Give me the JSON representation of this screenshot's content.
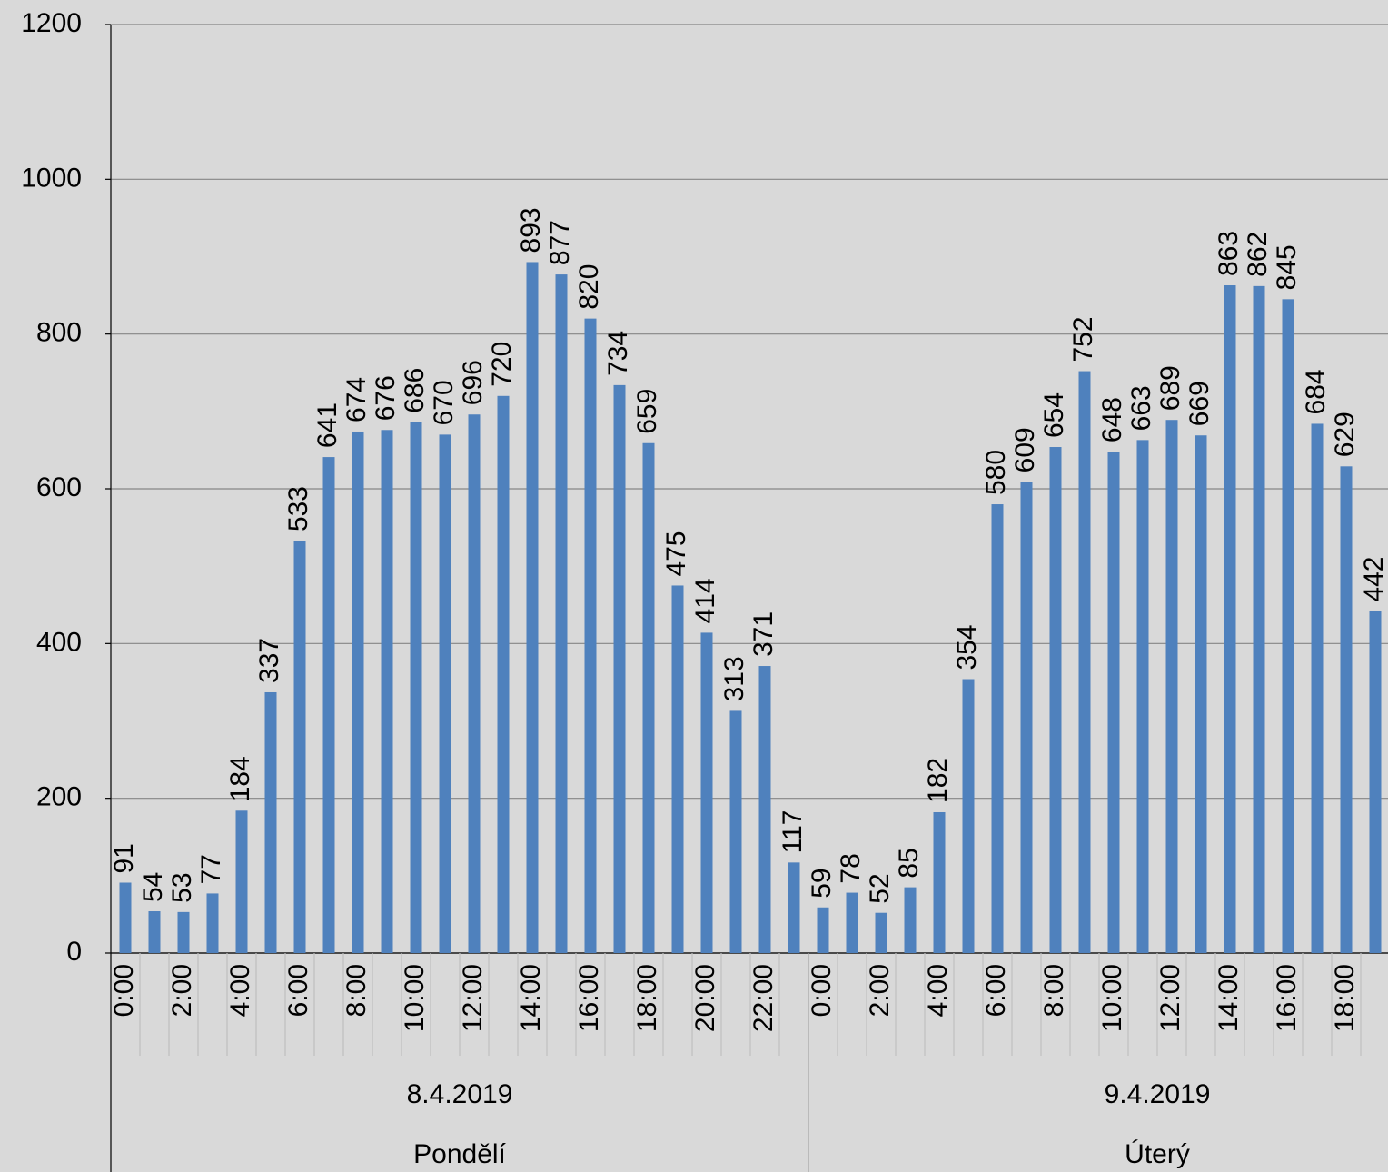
{
  "chart_data": {
    "type": "bar",
    "categories": [
      "0:00",
      null,
      "2:00",
      null,
      "4:00",
      null,
      "6:00",
      null,
      "8:00",
      null,
      "10:00",
      null,
      "12:00",
      null,
      "14:00",
      null,
      "16:00",
      null,
      "18:00",
      null,
      "20:00",
      null,
      "22:00",
      null,
      "0:00",
      null,
      "2:00",
      null,
      "4:00",
      null,
      "6:00",
      null,
      "8:00",
      null,
      "10:00",
      null,
      "12:00",
      null,
      "14:00",
      null,
      "16:00",
      null,
      "18:00",
      null
    ],
    "groups": [
      {
        "date": "8.4.2019",
        "day": "Pondělí"
      },
      {
        "date": "9.4.2019",
        "day": "Úterý"
      }
    ],
    "values": [
      91,
      54,
      53,
      77,
      184,
      337,
      533,
      641,
      674,
      676,
      686,
      670,
      696,
      720,
      893,
      877,
      820,
      734,
      659,
      475,
      414,
      313,
      371,
      117,
      59,
      78,
      52,
      85,
      182,
      354,
      580,
      609,
      654,
      752,
      648,
      663,
      689,
      669,
      863,
      862,
      845,
      684,
      629,
      442
    ],
    "color": "#4f81bd",
    "ylim": [
      0,
      1200
    ],
    "yticks": [
      0,
      200,
      400,
      600,
      800,
      1000,
      1200
    ],
    "grid": true
  }
}
